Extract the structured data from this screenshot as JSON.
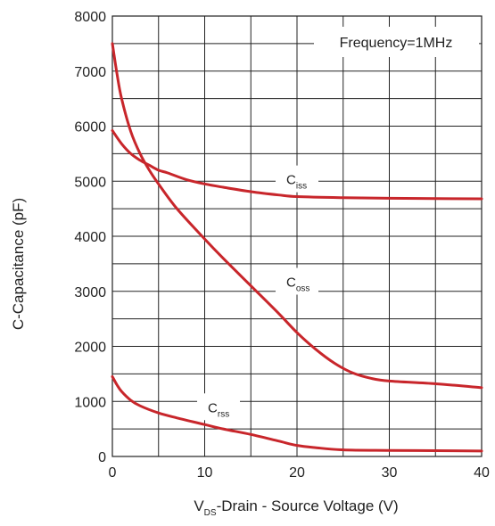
{
  "chart_data": {
    "type": "line",
    "title": "",
    "xlabel": {
      "main": "V",
      "sub": "DS",
      "rest": "-Drain - Source Voltage (V)"
    },
    "ylabel": "C-Capacitance (pF)",
    "annotation": "Frequency=1MHz",
    "xlim": [
      0,
      40
    ],
    "ylim": [
      0,
      8000
    ],
    "x_ticks": [
      0,
      10,
      20,
      30,
      40
    ],
    "y_ticks": [
      0,
      1000,
      2000,
      3000,
      4000,
      5000,
      6000,
      7000,
      8000
    ],
    "x_grid_step": 5,
    "y_grid_step": 500,
    "grid": true,
    "line_color": "#c8262b",
    "series": [
      {
        "name": "C",
        "sub": "iss",
        "x": [
          0,
          1,
          2,
          3,
          4,
          5,
          6,
          8,
          10,
          12,
          15,
          18,
          20,
          25,
          30,
          35,
          40
        ],
        "y": [
          5920,
          5680,
          5500,
          5380,
          5290,
          5200,
          5150,
          5030,
          4950,
          4890,
          4810,
          4750,
          4720,
          4700,
          4690,
          4685,
          4680
        ],
        "label_at": [
          20,
          5010
        ]
      },
      {
        "name": "C",
        "sub": "oss",
        "x": [
          0,
          0.5,
          1,
          2,
          3,
          4,
          5,
          7,
          10,
          12,
          15,
          18,
          20,
          22,
          24,
          26,
          28,
          30,
          35,
          40
        ],
        "y": [
          7500,
          6950,
          6500,
          5900,
          5500,
          5200,
          4950,
          4500,
          3950,
          3600,
          3100,
          2600,
          2250,
          1950,
          1700,
          1520,
          1420,
          1370,
          1320,
          1250
        ],
        "label_at": [
          20,
          3150
        ]
      },
      {
        "name": "C",
        "sub": "rss",
        "x": [
          0,
          0.5,
          1,
          2,
          3,
          5,
          7,
          10,
          12,
          15,
          18,
          20,
          22,
          25,
          30,
          35,
          40
        ],
        "y": [
          1450,
          1300,
          1180,
          1020,
          920,
          790,
          700,
          580,
          500,
          400,
          280,
          200,
          160,
          120,
          110,
          105,
          100
        ],
        "label_at": [
          11.5,
          870
        ]
      }
    ]
  }
}
